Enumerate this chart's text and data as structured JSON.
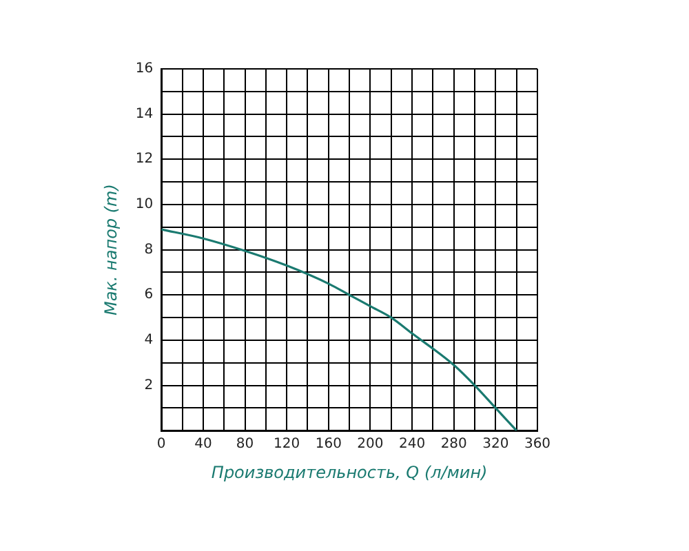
{
  "chart_data": {
    "type": "line",
    "xlabel": "Производительность, Q (л/мин)",
    "ylabel": "Мак. напор (m)",
    "x": [
      0,
      40,
      80,
      120,
      160,
      180,
      200,
      220,
      240,
      280,
      300,
      320,
      340
    ],
    "series": [
      {
        "color": "#1a7a70",
        "values": [
          8.9,
          8.5,
          7.95,
          7.3,
          6.5,
          6.0,
          5.5,
          5.0,
          4.3,
          2.9,
          2.0,
          1.0,
          0
        ]
      }
    ],
    "xlim": [
      0,
      360
    ],
    "ylim": [
      0,
      16
    ],
    "xticks": [
      0,
      {
        "value": 20,
        "label": null
      },
      40,
      {
        "value": 60,
        "label": null
      },
      80,
      {
        "value": 100,
        "label": null
      },
      120,
      {
        "value": 140,
        "label": null
      },
      160,
      {
        "value": 180,
        "label": null
      },
      200,
      {
        "value": 220,
        "label": null
      },
      240,
      {
        "value": 260,
        "label": null
      },
      280,
      {
        "value": 300,
        "label": null
      },
      320,
      {
        "value": 340,
        "label": null
      },
      360
    ],
    "yticks": [
      {
        "value": 0,
        "label": null
      },
      {
        "value": 1,
        "label": null
      },
      2,
      {
        "value": 3,
        "label": null
      },
      4,
      {
        "value": 5,
        "label": null
      },
      6,
      {
        "value": 7,
        "label": null
      },
      8,
      {
        "value": 9,
        "label": null
      },
      10,
      {
        "value": 11,
        "label": null
      },
      12,
      {
        "value": 13,
        "label": null
      },
      14,
      {
        "value": 15,
        "label": null
      },
      16
    ],
    "grid": true,
    "legend": false,
    "marker": "none",
    "line_style": "solid"
  }
}
